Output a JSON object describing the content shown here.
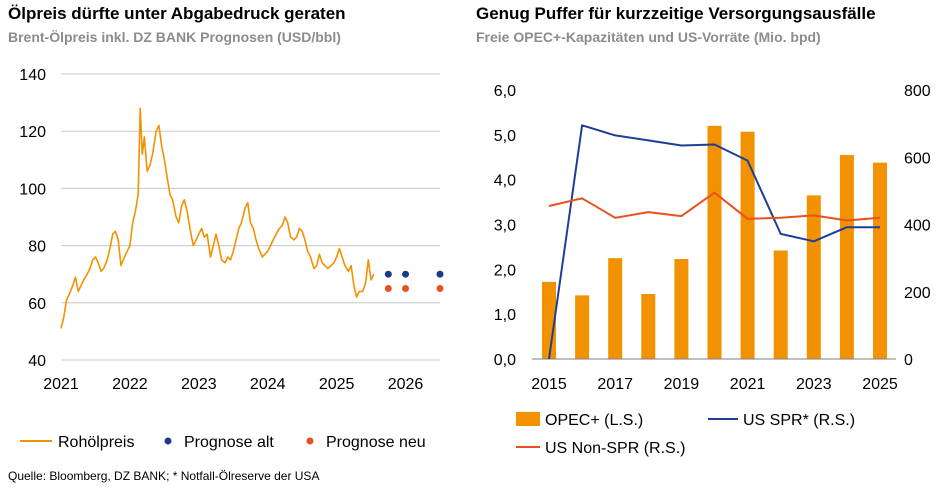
{
  "charts": [
    {
      "title": "Ölpreis dürfte unter Abgabedruck geraten",
      "subtitle": "Brent-Ölpreis inkl. DZ BANK Prognosen (USD/bbl)"
    },
    {
      "title": "Genug Puffer für kurzzeitige Versorgungsausfälle",
      "subtitle": "Freie OPEC+-Kapazitäten und US-Vorräte (Mio. bpd)"
    }
  ],
  "source": "Quelle: Bloomberg, DZ BANK; * Notfall-Ölreserve der USA",
  "colors": {
    "orange": "#f39200",
    "red": "#e8501e",
    "navy": "#1a3a8c",
    "blue": "#1f3f96",
    "grid": "#c8c8c8"
  },
  "chart_data": [
    {
      "type": "line",
      "title": "Ölpreis dürfte unter Abgabedruck geraten",
      "subtitle": "Brent-Ölpreis inkl. DZ BANK Prognosen (USD/bbl)",
      "xlim": [
        2021.0,
        2026.5
      ],
      "ylim": [
        40,
        140
      ],
      "yticks": [
        40,
        60,
        80,
        100,
        120,
        140
      ],
      "xticks": [
        "2021",
        "2022",
        "2023",
        "2024",
        "2025",
        "2026"
      ],
      "grid": true,
      "legend": [
        "Rohölpreis",
        "Prognose alt",
        "Prognose neu"
      ],
      "series": [
        {
          "name": "Rohölpreis",
          "color": "#f39200",
          "points": [
            [
              2021.0,
              51
            ],
            [
              2021.04,
              55
            ],
            [
              2021.08,
              61
            ],
            [
              2021.12,
              63
            ],
            [
              2021.17,
              66
            ],
            [
              2021.21,
              69
            ],
            [
              2021.25,
              64
            ],
            [
              2021.29,
              66
            ],
            [
              2021.33,
              68
            ],
            [
              2021.38,
              70
            ],
            [
              2021.42,
              72
            ],
            [
              2021.46,
              75
            ],
            [
              2021.5,
              76
            ],
            [
              2021.54,
              74
            ],
            [
              2021.58,
              71
            ],
            [
              2021.62,
              72
            ],
            [
              2021.67,
              75
            ],
            [
              2021.71,
              79
            ],
            [
              2021.75,
              84
            ],
            [
              2021.79,
              85
            ],
            [
              2021.83,
              82
            ],
            [
              2021.87,
              73
            ],
            [
              2021.92,
              76
            ],
            [
              2021.96,
              78
            ],
            [
              2022.0,
              80
            ],
            [
              2022.04,
              88
            ],
            [
              2022.08,
              92
            ],
            [
              2022.12,
              98
            ],
            [
              2022.15,
              128
            ],
            [
              2022.18,
              112
            ],
            [
              2022.21,
              118
            ],
            [
              2022.25,
              106
            ],
            [
              2022.29,
              108
            ],
            [
              2022.33,
              112
            ],
            [
              2022.38,
              120
            ],
            [
              2022.42,
              122
            ],
            [
              2022.46,
              115
            ],
            [
              2022.5,
              110
            ],
            [
              2022.54,
              104
            ],
            [
              2022.58,
              98
            ],
            [
              2022.62,
              96
            ],
            [
              2022.67,
              90
            ],
            [
              2022.71,
              88
            ],
            [
              2022.75,
              94
            ],
            [
              2022.79,
              96
            ],
            [
              2022.83,
              92
            ],
            [
              2022.87,
              86
            ],
            [
              2022.92,
              80
            ],
            [
              2022.96,
              82
            ],
            [
              2023.0,
              84
            ],
            [
              2023.04,
              86
            ],
            [
              2023.08,
              83
            ],
            [
              2023.12,
              84
            ],
            [
              2023.17,
              76
            ],
            [
              2023.21,
              80
            ],
            [
              2023.25,
              84
            ],
            [
              2023.29,
              80
            ],
            [
              2023.33,
              75
            ],
            [
              2023.38,
              74
            ],
            [
              2023.42,
              76
            ],
            [
              2023.46,
              75
            ],
            [
              2023.5,
              78
            ],
            [
              2023.54,
              82
            ],
            [
              2023.58,
              86
            ],
            [
              2023.62,
              88
            ],
            [
              2023.67,
              93
            ],
            [
              2023.71,
              95
            ],
            [
              2023.75,
              88
            ],
            [
              2023.79,
              86
            ],
            [
              2023.83,
              82
            ],
            [
              2023.87,
              79
            ],
            [
              2023.92,
              76
            ],
            [
              2023.96,
              77
            ],
            [
              2024.0,
              78
            ],
            [
              2024.04,
              80
            ],
            [
              2024.08,
              82
            ],
            [
              2024.12,
              84
            ],
            [
              2024.17,
              86
            ],
            [
              2024.21,
              87
            ],
            [
              2024.25,
              90
            ],
            [
              2024.29,
              88
            ],
            [
              2024.33,
              83
            ],
            [
              2024.38,
              82
            ],
            [
              2024.42,
              83
            ],
            [
              2024.46,
              86
            ],
            [
              2024.5,
              85
            ],
            [
              2024.54,
              82
            ],
            [
              2024.58,
              78
            ],
            [
              2024.62,
              76
            ],
            [
              2024.67,
              72
            ],
            [
              2024.71,
              73
            ],
            [
              2024.75,
              77
            ],
            [
              2024.79,
              74
            ],
            [
              2024.83,
              73
            ],
            [
              2024.87,
              72
            ],
            [
              2024.92,
              73
            ],
            [
              2024.96,
              74
            ],
            [
              2025.0,
              76
            ],
            [
              2025.04,
              79
            ],
            [
              2025.08,
              76
            ],
            [
              2025.12,
              73
            ],
            [
              2025.17,
              71
            ],
            [
              2025.21,
              73
            ],
            [
              2025.25,
              66
            ],
            [
              2025.29,
              62
            ],
            [
              2025.33,
              64
            ],
            [
              2025.38,
              64
            ],
            [
              2025.42,
              67
            ],
            [
              2025.46,
              75
            ],
            [
              2025.5,
              68
            ],
            [
              2025.54,
              70
            ]
          ]
        },
        {
          "name": "Prognose alt",
          "color": "#1a3a8c",
          "points": [
            [
              2025.75,
              70
            ],
            [
              2026.0,
              70
            ],
            [
              2026.5,
              70
            ]
          ]
        },
        {
          "name": "Prognose neu",
          "color": "#e8501e",
          "points": [
            [
              2025.75,
              65
            ],
            [
              2026.0,
              65
            ],
            [
              2026.5,
              65
            ]
          ]
        }
      ]
    },
    {
      "type": "bar",
      "title": "Genug Puffer für kurzzeitige Versorgungsausfälle",
      "subtitle": "Freie OPEC+-Kapazitäten und US-Vorräte (Mio. bpd)",
      "categories": [
        "2015",
        "2016",
        "2017",
        "2018",
        "2019",
        "2020",
        "2021",
        "2022",
        "2023",
        "2024",
        "2025"
      ],
      "xtick_labels": [
        "2015",
        "2017",
        "2019",
        "2021",
        "2023",
        "2025"
      ],
      "ylim_left": [
        0,
        6
      ],
      "yticks_left": [
        "0,0",
        "1,0",
        "2,0",
        "3,0",
        "4,0",
        "5,0",
        "6,0"
      ],
      "ylim_right": [
        0,
        800
      ],
      "yticks_right": [
        "0",
        "200",
        "400",
        "600",
        "800"
      ],
      "grid": false,
      "legend": [
        "OPEC+ (L.S.)",
        "US SPR* (R.S.)",
        "US Non-SPR (R.S.)"
      ],
      "series": [
        {
          "name": "OPEC+ (L.S.)",
          "type": "bar",
          "axis": "left",
          "color": "#f39200",
          "values": [
            1.72,
            1.42,
            2.25,
            1.45,
            2.23,
            5.2,
            5.07,
            2.42,
            3.65,
            4.55,
            4.38
          ]
        },
        {
          "name": "US SPR* (R.S.)",
          "type": "line",
          "axis": "right",
          "color": "#1f3f96",
          "values": [
            0,
            695,
            665,
            650,
            635,
            638,
            590,
            372,
            350,
            392,
            392
          ]
        },
        {
          "name": "US Non-SPR (R.S.)",
          "type": "line",
          "axis": "right",
          "color": "#e8501e",
          "values": [
            455,
            478,
            420,
            437,
            425,
            495,
            417,
            420,
            427,
            412,
            420
          ]
        }
      ]
    }
  ]
}
